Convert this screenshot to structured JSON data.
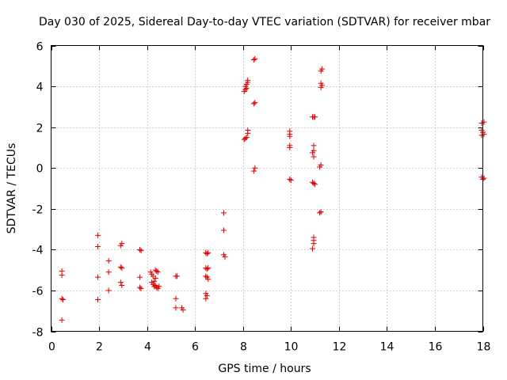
{
  "chart_data": {
    "type": "scatter",
    "title": "Day 030 of 2025, Sidereal Day-to-day VTEC variation (SDTVAR) for receiver mbar",
    "xlabel": "GPS time / hours",
    "ylabel": "SDTVAR / TECUs",
    "xlim": [
      0,
      18
    ],
    "ylim": [
      -8,
      6
    ],
    "grid": true,
    "xticks": [
      0,
      2,
      4,
      6,
      8,
      10,
      12,
      14,
      16,
      18
    ],
    "yticks": [
      -8,
      -6,
      -4,
      -2,
      0,
      2,
      4,
      6
    ],
    "xtick_labels": [
      "0",
      "2",
      "4",
      "6",
      "8",
      "10",
      "12",
      "14",
      "16",
      "18"
    ],
    "ytick_labels": [
      "-8",
      "-6",
      "-4",
      "-2",
      "0",
      "2",
      "4",
      "6"
    ],
    "marker": "+",
    "color": "#dd0000",
    "series": [
      {
        "name": "SDTVAR",
        "points": [
          [
            0.45,
            -5.05
          ],
          [
            0.45,
            -5.25
          ],
          [
            0.45,
            -6.4
          ],
          [
            0.5,
            -6.45
          ],
          [
            0.45,
            -7.45
          ],
          [
            1.95,
            -3.3
          ],
          [
            1.95,
            -3.85
          ],
          [
            1.95,
            -5.35
          ],
          [
            1.95,
            -6.45
          ],
          [
            2.4,
            -4.55
          ],
          [
            2.4,
            -5.1
          ],
          [
            2.4,
            -6.0
          ],
          [
            2.9,
            -3.8
          ],
          [
            2.95,
            -3.7
          ],
          [
            2.9,
            -4.85
          ],
          [
            2.95,
            -4.9
          ],
          [
            2.9,
            -5.6
          ],
          [
            2.95,
            -5.75
          ],
          [
            3.7,
            -4.0
          ],
          [
            3.75,
            -4.05
          ],
          [
            3.7,
            -5.35
          ],
          [
            3.7,
            -5.85
          ],
          [
            3.75,
            -5.9
          ],
          [
            4.15,
            -5.1
          ],
          [
            4.2,
            -5.2
          ],
          [
            4.25,
            -5.3
          ],
          [
            4.2,
            -5.6
          ],
          [
            4.25,
            -5.7
          ],
          [
            4.3,
            -5.8
          ],
          [
            4.35,
            -5.0
          ],
          [
            4.4,
            -5.05
          ],
          [
            4.45,
            -5.1
          ],
          [
            4.35,
            -5.4
          ],
          [
            4.3,
            -5.55
          ],
          [
            4.35,
            -5.75
          ],
          [
            4.4,
            -5.85
          ],
          [
            4.45,
            -5.9
          ],
          [
            4.5,
            -5.8
          ],
          [
            5.2,
            -5.3
          ],
          [
            5.25,
            -5.3
          ],
          [
            5.2,
            -6.4
          ],
          [
            5.2,
            -6.85
          ],
          [
            5.45,
            -6.85
          ],
          [
            5.5,
            -6.95
          ],
          [
            6.45,
            -4.15
          ],
          [
            6.5,
            -4.2
          ],
          [
            6.55,
            -4.15
          ],
          [
            6.45,
            -4.9
          ],
          [
            6.5,
            -4.95
          ],
          [
            6.55,
            -4.9
          ],
          [
            6.45,
            -5.3
          ],
          [
            6.5,
            -5.35
          ],
          [
            6.55,
            -5.45
          ],
          [
            6.45,
            -6.15
          ],
          [
            6.5,
            -6.25
          ],
          [
            6.45,
            -6.4
          ],
          [
            7.2,
            -2.2
          ],
          [
            7.2,
            -3.05
          ],
          [
            7.2,
            -4.25
          ],
          [
            7.25,
            -4.35
          ],
          [
            8.05,
            3.75
          ],
          [
            8.1,
            3.85
          ],
          [
            8.15,
            3.9
          ],
          [
            8.1,
            4.0
          ],
          [
            8.15,
            4.1
          ],
          [
            8.2,
            4.2
          ],
          [
            8.2,
            4.3
          ],
          [
            8.05,
            1.4
          ],
          [
            8.1,
            1.45
          ],
          [
            8.15,
            1.5
          ],
          [
            8.2,
            1.7
          ],
          [
            8.2,
            1.85
          ],
          [
            8.45,
            5.3
          ],
          [
            8.5,
            5.35
          ],
          [
            8.45,
            3.15
          ],
          [
            8.5,
            3.2
          ],
          [
            8.45,
            -0.15
          ],
          [
            8.5,
            0.0
          ],
          [
            9.95,
            1.0
          ],
          [
            9.95,
            1.1
          ],
          [
            9.95,
            1.55
          ],
          [
            9.95,
            1.65
          ],
          [
            9.95,
            1.8
          ],
          [
            9.95,
            -0.55
          ],
          [
            10.0,
            -0.6
          ],
          [
            10.9,
            2.5
          ],
          [
            10.95,
            2.5
          ],
          [
            11.0,
            2.5
          ],
          [
            10.95,
            1.1
          ],
          [
            10.95,
            0.85
          ],
          [
            10.9,
            0.75
          ],
          [
            10.95,
            0.55
          ],
          [
            10.9,
            -0.7
          ],
          [
            10.95,
            -0.75
          ],
          [
            11.0,
            -0.8
          ],
          [
            10.95,
            -3.4
          ],
          [
            10.95,
            -3.55
          ],
          [
            10.95,
            -3.7
          ],
          [
            10.9,
            -3.95
          ],
          [
            11.25,
            4.75
          ],
          [
            11.3,
            4.85
          ],
          [
            11.25,
            4.15
          ],
          [
            11.3,
            4.05
          ],
          [
            11.25,
            3.95
          ],
          [
            11.2,
            0.05
          ],
          [
            11.25,
            0.15
          ],
          [
            11.25,
            -2.15
          ],
          [
            11.2,
            -2.2
          ],
          [
            17.95,
            2.2
          ],
          [
            18.05,
            2.25
          ],
          [
            17.95,
            1.85
          ],
          [
            18.0,
            1.75
          ],
          [
            18.05,
            1.65
          ],
          [
            17.95,
            1.6
          ],
          [
            17.95,
            -0.45
          ],
          [
            18.05,
            -0.5
          ],
          [
            18.0,
            -0.55
          ]
        ]
      }
    ]
  }
}
